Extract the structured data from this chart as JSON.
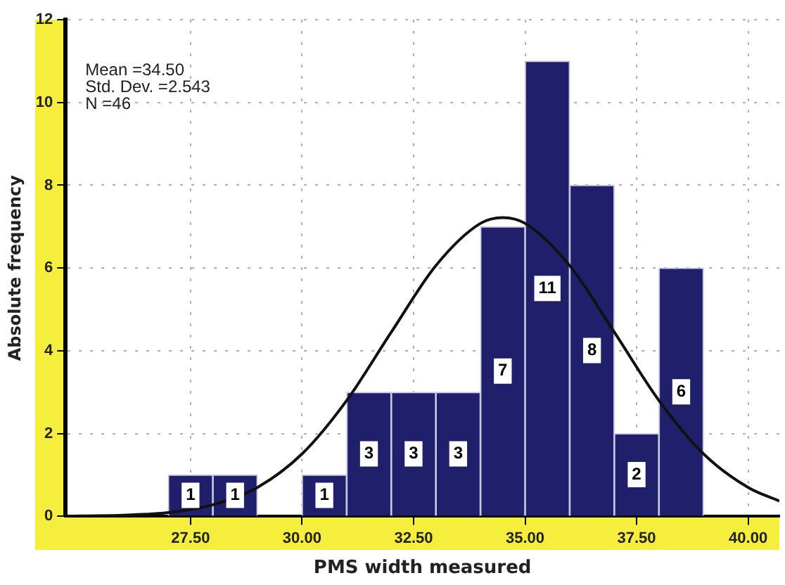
{
  "chart_data": {
    "type": "histogram",
    "xlabel": "PMS width measured",
    "ylabel": "Absolute frequency",
    "bins": [
      27,
      28,
      29,
      30,
      31,
      32,
      33,
      34,
      35,
      36,
      37,
      38,
      39
    ],
    "values": [
      1,
      1,
      0,
      1,
      3,
      3,
      3,
      7,
      11,
      8,
      2,
      6
    ],
    "value_labels": [
      "1",
      "1",
      null,
      "1",
      "3",
      "3",
      "3",
      "7",
      "11",
      "8",
      "2",
      "6"
    ],
    "color": "#1f1f6b",
    "series": [
      {
        "type": "line",
        "color": "#111111",
        "x": [
          24.7,
          25,
          26,
          27,
          28,
          29,
          30,
          31,
          32,
          33,
          34,
          34.5,
          35,
          36,
          37,
          38,
          39,
          40,
          40.7
        ],
        "values": [
          0,
          0.01,
          0.03,
          0.09,
          0.28,
          0.7,
          1.51,
          2.8,
          4.45,
          6.06,
          7.08,
          7.22,
          7.08,
          6.06,
          4.45,
          2.8,
          1.51,
          0.7,
          0.37
        ]
      }
    ],
    "xlim": [
      24.7,
      40.7
    ],
    "xticks": [
      {
        "value": 27.5,
        "label": "27.50"
      },
      {
        "value": 30,
        "label": "30.00"
      },
      {
        "value": 32.5,
        "label": "32.50"
      },
      {
        "value": 35,
        "label": "35.00"
      },
      {
        "value": 37.5,
        "label": "37.50"
      },
      {
        "value": 40,
        "label": "40.00"
      }
    ],
    "ylim": [
      0,
      12
    ],
    "yticks": [
      0,
      2,
      4,
      6,
      8,
      10,
      12
    ],
    "grid": true,
    "legend": false,
    "annotations": [
      "Mean =34.50",
      "Std. Dev. =2.543",
      "N =46"
    ]
  }
}
